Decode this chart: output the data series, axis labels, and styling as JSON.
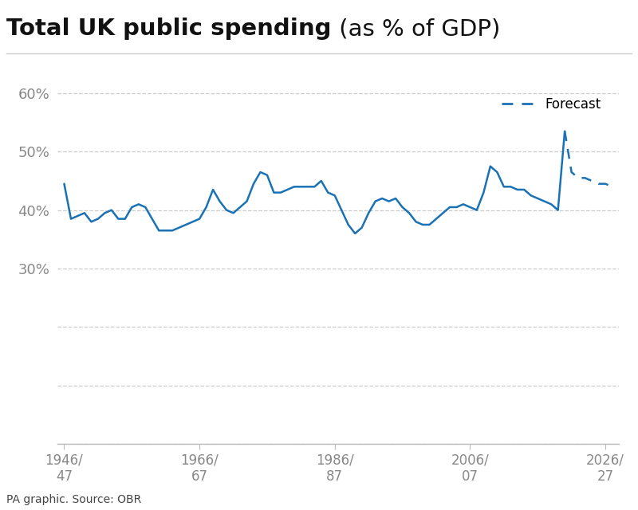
{
  "title_bold": "Total UK public spending",
  "title_normal": " (as % of GDP)",
  "line_color": "#1a72b5",
  "forecast_color": "#1a72b5",
  "background_color": "#ffffff",
  "grid_color": "#cccccc",
  "source_text": "PA graphic. Source: OBR",
  "xlim": [
    -1,
    82
  ],
  "ylim": [
    0,
    62
  ],
  "yticks": [
    0,
    10,
    20,
    30,
    40,
    50,
    60
  ],
  "ytick_labels": [
    "",
    "",
    "",
    "30%",
    "40%",
    "50%",
    "60%"
  ],
  "xtick_positions": [
    0,
    20,
    40,
    60,
    80
  ],
  "xtick_labels": [
    "1946/\n47",
    "1966/\n67",
    "1986/\n87",
    "2006/\n07",
    "2026/\n27"
  ],
  "forecast_start_index": 74,
  "values": [
    44.5,
    38.5,
    39.0,
    39.5,
    38.0,
    38.5,
    39.5,
    40.0,
    38.5,
    38.5,
    40.5,
    41.0,
    40.5,
    38.5,
    36.5,
    36.5,
    36.5,
    37.0,
    37.5,
    38.0,
    38.5,
    40.5,
    43.5,
    41.5,
    40.0,
    39.5,
    40.5,
    41.5,
    44.5,
    46.5,
    46.0,
    43.0,
    43.0,
    43.5,
    44.0,
    44.0,
    44.0,
    44.0,
    45.0,
    43.0,
    42.5,
    40.0,
    37.5,
    36.0,
    37.0,
    39.5,
    41.5,
    42.0,
    41.5,
    42.0,
    40.5,
    39.5,
    38.0,
    37.5,
    37.5,
    38.5,
    39.5,
    40.5,
    40.5,
    41.0,
    40.5,
    40.0,
    43.0,
    47.5,
    46.5,
    44.0,
    44.0,
    43.5,
    43.5,
    42.5,
    42.0,
    41.5,
    41.0,
    40.0,
    53.5,
    46.5,
    45.5,
    45.5,
    45.0,
    44.5,
    44.5,
    44.0
  ]
}
